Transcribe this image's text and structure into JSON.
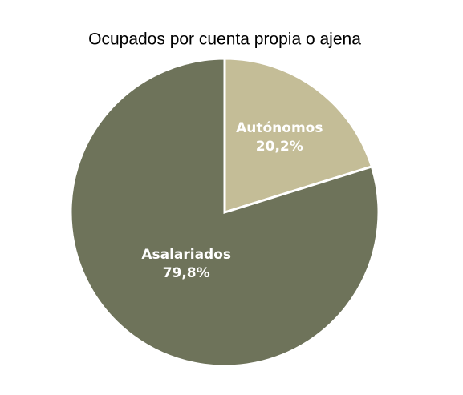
{
  "chart_data": {
    "type": "pie",
    "title": "Ocupados por cuenta propia o ajena",
    "categories": [
      "Autónomos",
      "Asalariados"
    ],
    "values": [
      20.2,
      79.8
    ],
    "value_labels": [
      "20,2%",
      "79,8%"
    ],
    "colors": [
      "#c4bd97",
      "#6e735a"
    ]
  }
}
